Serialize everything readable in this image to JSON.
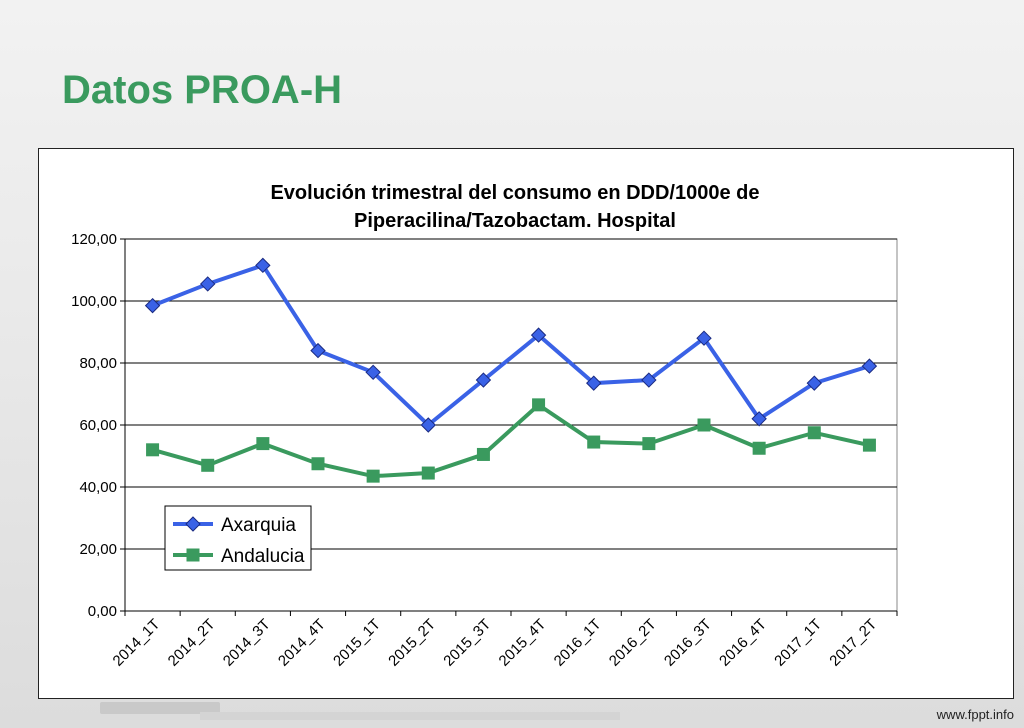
{
  "slide": {
    "title": "Datos PROA-H",
    "footer": "www.fppt.info"
  },
  "colors": {
    "title": "#3a9a5e",
    "axarquia": "#3a62e6",
    "andalucia": "#3a9a5e"
  },
  "chart_data": {
    "type": "line",
    "title_lines": [
      "Evolución trimestral del consumo en DDD/1000e de",
      "Piperacilina/Tazobactam. Hospital"
    ],
    "categories": [
      "2014_1T",
      "2014_2T",
      "2014_3T",
      "2014_4T",
      "2015_1T",
      "2015_2T",
      "2015_3T",
      "2015_4T",
      "2016_1T",
      "2016_2T",
      "2016_3T",
      "2016_4T",
      "2017_1T",
      "2017_2T"
    ],
    "series": [
      {
        "name": "Axarquia",
        "marker": "diamond",
        "values": [
          98.5,
          105.5,
          111.5,
          84.0,
          77.0,
          60.0,
          74.5,
          89.0,
          73.5,
          74.5,
          88.0,
          62.0,
          73.5,
          79.0
        ]
      },
      {
        "name": "Andalucia",
        "marker": "square",
        "values": [
          52.0,
          47.0,
          54.0,
          47.5,
          43.5,
          44.5,
          50.5,
          66.5,
          54.5,
          54.0,
          60.0,
          52.5,
          57.5,
          53.5
        ]
      }
    ],
    "ylim": [
      0,
      120
    ],
    "yticks": [
      "0,00",
      "20,00",
      "40,00",
      "60,00",
      "80,00",
      "100,00",
      "120,00"
    ],
    "grid": true,
    "legend": "bottom-left"
  }
}
